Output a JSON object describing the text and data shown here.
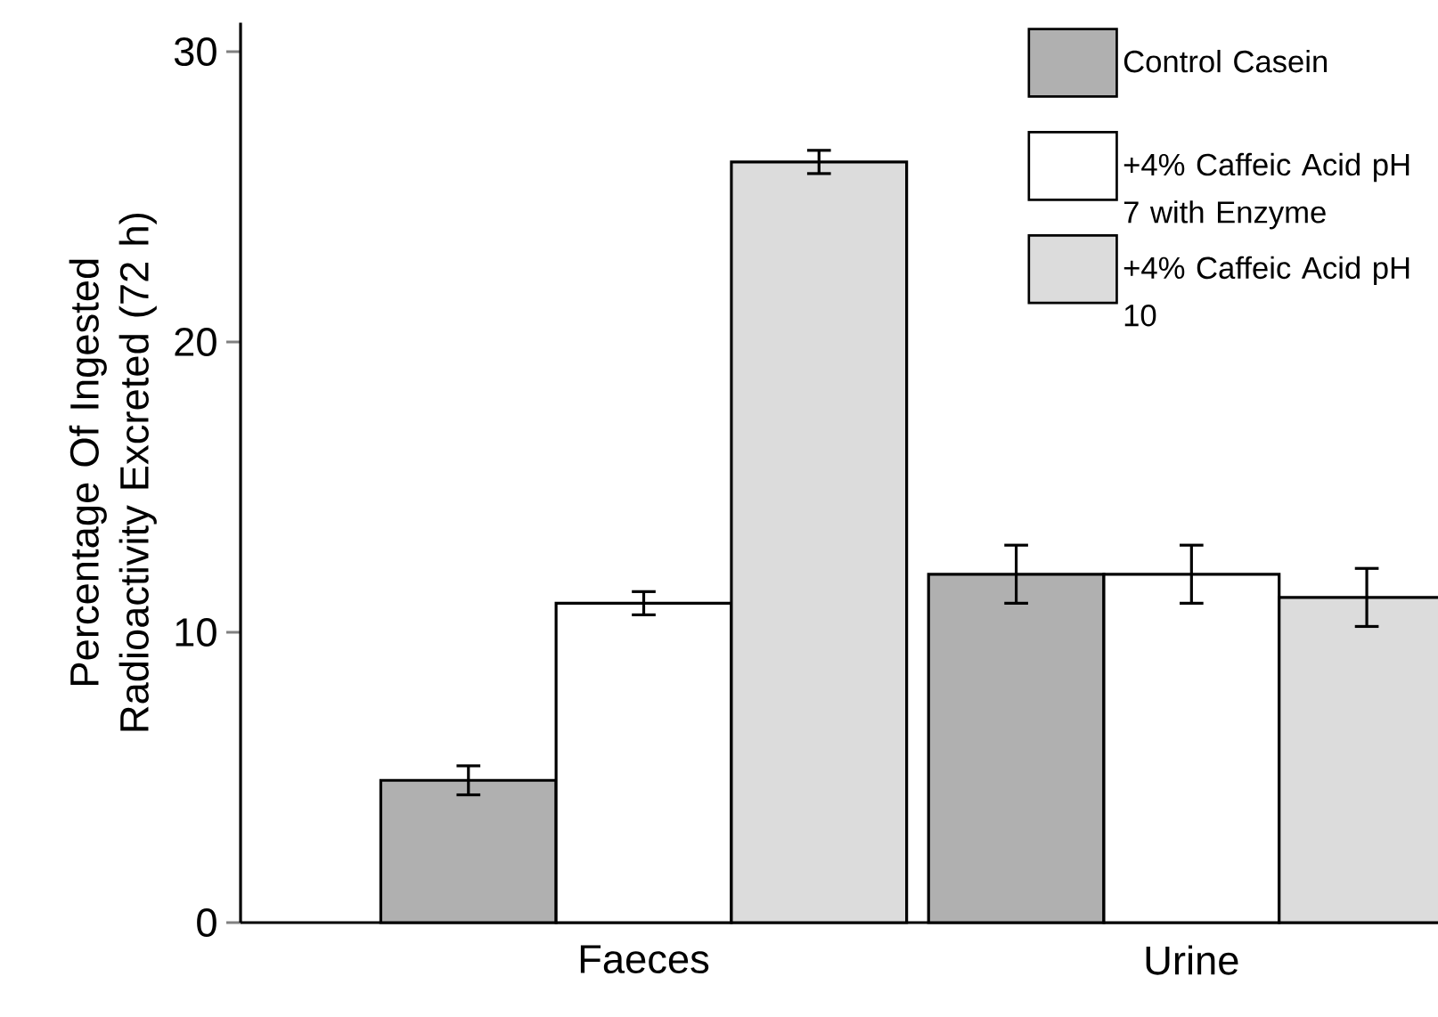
{
  "chart_data": {
    "type": "bar",
    "ylabel": "Percentage Of Ingested Radioactivity Excreted (72 h)",
    "categories": [
      "Faeces",
      "Urine"
    ],
    "series": [
      {
        "name": "Control Casein",
        "color": "#b0b0b0",
        "values": [
          4.9,
          12.0
        ],
        "errors": [
          0.5,
          1.0
        ]
      },
      {
        "name": "+4% Caffeic Acid pH 7 with Enzyme",
        "color": "#ffffff",
        "values": [
          11.0,
          12.0
        ],
        "errors": [
          0.4,
          1.0
        ]
      },
      {
        "name": "+4% Caffeic Acid pH 10",
        "color": "#dcdcdc",
        "values": [
          26.2,
          11.2
        ],
        "errors": [
          0.4,
          1.0
        ]
      }
    ],
    "ylim": [
      0,
      31
    ],
    "yticks": [
      0,
      10,
      20,
      30
    ],
    "grid": false,
    "legend": "top right"
  }
}
